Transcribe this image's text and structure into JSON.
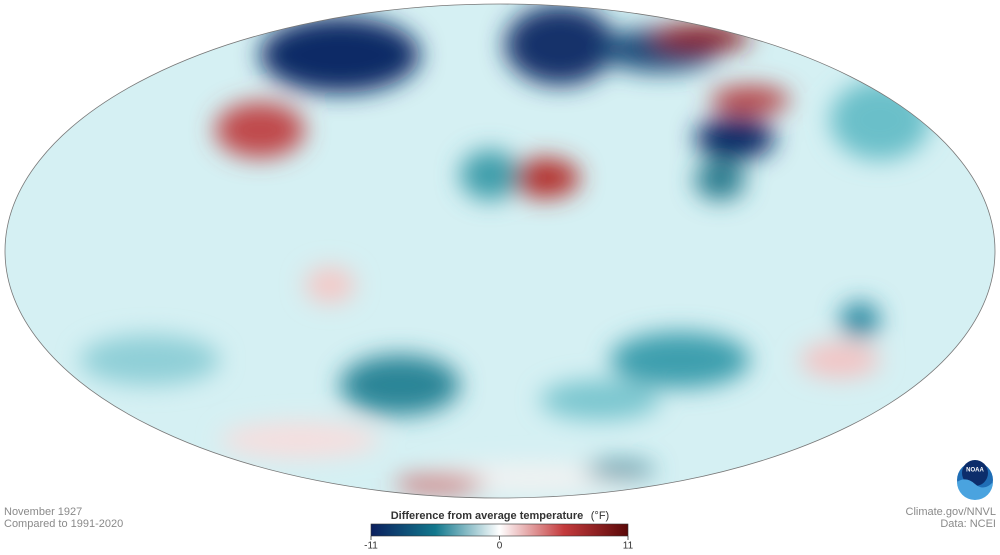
{
  "caption": {
    "date": "November 1927",
    "baseline": "Compared to 1991-2020"
  },
  "legend": {
    "title": "Difference from average temperature",
    "unit": "(°F)",
    "ticks": [
      -11,
      0,
      11
    ],
    "colors": [
      "#0b1f5e",
      "#12788d",
      "#ffffff",
      "#c43b3d",
      "#5a0808"
    ]
  },
  "credits": {
    "source": "Climate.gov/NNVL",
    "data": "Data: NCEI"
  },
  "logo": "NOAA"
}
